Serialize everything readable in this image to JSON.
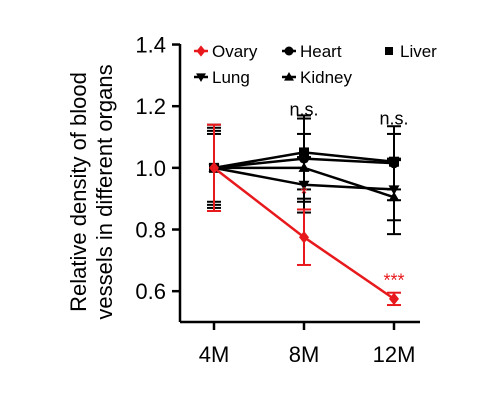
{
  "chart_data": {
    "type": "line",
    "categories": [
      "4M",
      "8M",
      "12M"
    ],
    "ylabel_line1": "Relative density of blood",
    "ylabel_line2": "vessels in different organs",
    "ylim": [
      0.5,
      1.45
    ],
    "yticks": [
      "0.6",
      "0.8",
      "1.0",
      "1.2",
      "1.4"
    ],
    "ytick_values": [
      0.6,
      0.8,
      1.0,
      1.2,
      1.4
    ],
    "legend_position": "top",
    "series": [
      {
        "name": "Ovary",
        "color": "#e8191c",
        "marker": "diamond",
        "values": [
          1.0,
          0.775,
          0.575
        ],
        "err": [
          0.14,
          0.09,
          0.02
        ]
      },
      {
        "name": "Heart",
        "color": "#000000",
        "marker": "circle",
        "values": [
          1.0,
          1.03,
          1.015
        ],
        "err": [
          0.13,
          0.13,
          0.12
        ]
      },
      {
        "name": "Liver",
        "color": "#000000",
        "marker": "square",
        "values": [
          1.0,
          1.05,
          1.02
        ],
        "err": [
          0.11,
          0.12,
          0.09
        ]
      },
      {
        "name": "Lung",
        "color": "#000000",
        "marker": "triangle-down",
        "values": [
          1.0,
          0.945,
          0.93
        ],
        "err": [
          0.12,
          0.09,
          0.1
        ]
      },
      {
        "name": "Kidney",
        "color": "#000000",
        "marker": "triangle-up",
        "values": [
          1.0,
          1.0,
          0.905
        ],
        "err": [
          0.14,
          0.11,
          0.12
        ]
      }
    ],
    "annotations": [
      {
        "category": "8M",
        "y": 1.17,
        "text": "n.s.",
        "color": "#000000"
      },
      {
        "category": "12M",
        "y": 1.14,
        "text": "n.s.",
        "color": "#000000"
      },
      {
        "category": "8M",
        "y": 0.895,
        "text": "*",
        "color": "#e8191c"
      },
      {
        "category": "12M",
        "y": 0.615,
        "text": "***",
        "color": "#e8191c"
      }
    ]
  }
}
